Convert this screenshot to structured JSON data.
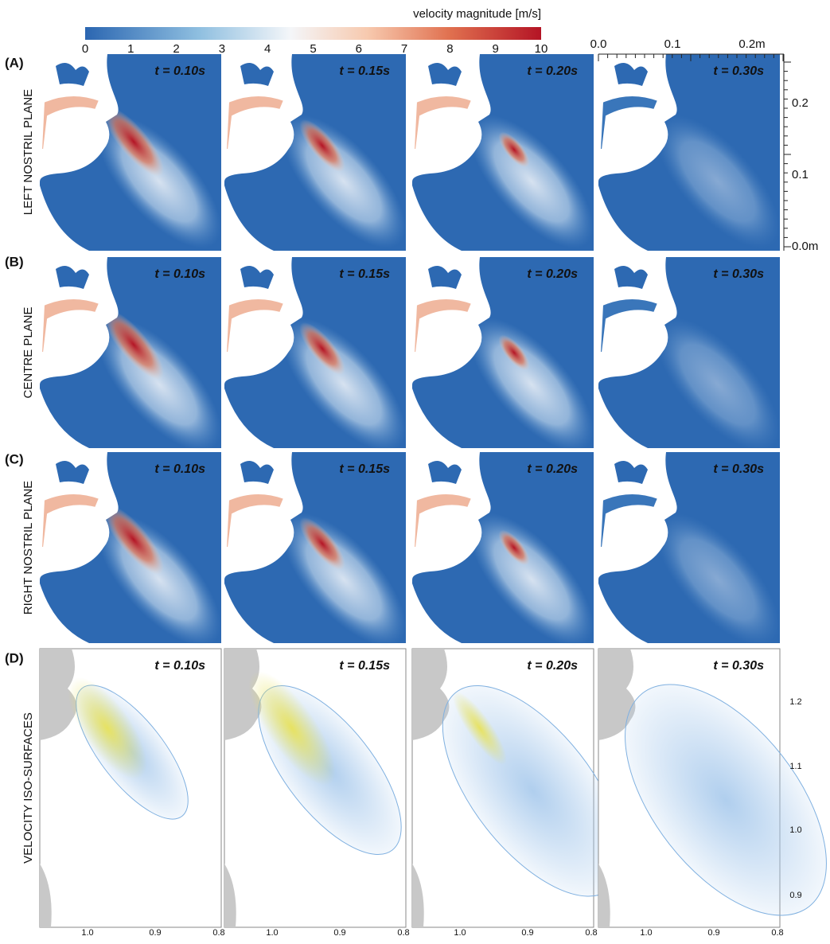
{
  "colorbar": {
    "title": "velocity  magnitude [m/s]",
    "ticks": [
      0,
      1,
      2,
      3,
      4,
      5,
      6,
      7,
      8,
      9,
      10
    ]
  },
  "scale_bar": {
    "x_labels": [
      "0.0",
      "0.1",
      "0.2m"
    ],
    "y_labels": [
      "0.2",
      "0.1",
      "0.0m"
    ]
  },
  "times": [
    "t = 0.10s",
    "t = 0.15s",
    "t = 0.20s",
    "t = 0.30s"
  ],
  "rows": [
    {
      "letter": "(A)",
      "label": "LEFT NOSTRIL PLANE"
    },
    {
      "letter": "(B)",
      "label": "CENTRE PLANE"
    },
    {
      "letter": "(C)",
      "label": "RIGHT NOSTRIL PLANE"
    },
    {
      "letter": "(D)",
      "label": "VELOCITY ISO-SURFACES"
    }
  ],
  "iso_axis": {
    "y_labels": [
      "1.2",
      "1.1",
      "1.0",
      "0.9"
    ],
    "x_labels": [
      "1.0",
      "0.9",
      "0.8"
    ]
  }
}
